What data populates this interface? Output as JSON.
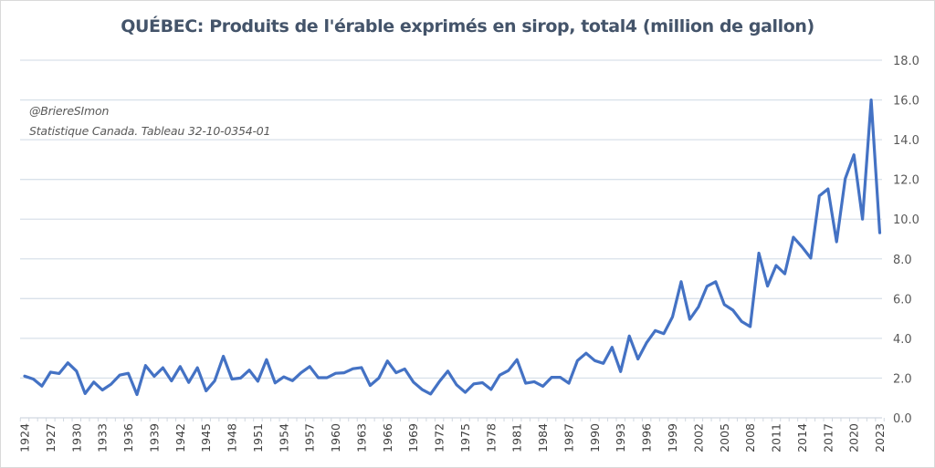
{
  "chart_data": {
    "type": "line",
    "title": "QUÉBEC: Produits de l'érable exprimés en sirop, total4 (million de gallon)",
    "annotations": [
      "@BriereSImon",
      "Statistique Canada. Tableau 32-10-0354-01"
    ],
    "xlabel": "",
    "ylabel": "",
    "ylim": [
      0,
      18
    ],
    "y_ticks": [
      "0.0",
      "2.0",
      "4.0",
      "6.0",
      "8.0",
      "10.0",
      "12.0",
      "14.0",
      "16.0",
      "18.0"
    ],
    "y_tick_values": [
      0,
      2,
      4,
      6,
      8,
      10,
      12,
      14,
      16,
      18
    ],
    "y_axis_position": "right",
    "grid": true,
    "legend": "none",
    "x_ticks": [
      "1924",
      "1927",
      "1930",
      "1933",
      "1936",
      "1939",
      "1942",
      "1945",
      "1948",
      "1951",
      "1954",
      "1957",
      "1960",
      "1963",
      "1966",
      "1969",
      "1972",
      "1975",
      "1978",
      "1981",
      "1984",
      "1987",
      "1990",
      "1993",
      "1996",
      "1999",
      "2002",
      "2005",
      "2008",
      "2011",
      "2014",
      "2017",
      "2020",
      "2023"
    ],
    "line_color": "#4472c4",
    "x": [
      1924,
      1925,
      1926,
      1927,
      1928,
      1929,
      1930,
      1931,
      1932,
      1933,
      1934,
      1935,
      1936,
      1937,
      1938,
      1939,
      1940,
      1941,
      1942,
      1943,
      1944,
      1945,
      1946,
      1947,
      1948,
      1949,
      1950,
      1951,
      1952,
      1953,
      1954,
      1955,
      1956,
      1957,
      1958,
      1959,
      1960,
      1961,
      1962,
      1963,
      1964,
      1965,
      1966,
      1967,
      1968,
      1969,
      1970,
      1971,
      1972,
      1973,
      1974,
      1975,
      1976,
      1977,
      1978,
      1979,
      1980,
      1981,
      1982,
      1983,
      1984,
      1985,
      1986,
      1987,
      1988,
      1989,
      1990,
      1991,
      1992,
      1993,
      1994,
      1995,
      1996,
      1997,
      1998,
      1999,
      2000,
      2001,
      2002,
      2003,
      2004,
      2005,
      2006,
      2007,
      2008,
      2009,
      2010,
      2011,
      2012,
      2013,
      2014,
      2015,
      2016,
      2017,
      2018,
      2019,
      2020,
      2021,
      2022,
      2023
    ],
    "series": [
      {
        "name": "Produits de l'érable exprimés en sirop, total",
        "values": [
          2.1,
          1.95,
          1.6,
          2.3,
          2.23,
          2.77,
          2.35,
          1.22,
          1.8,
          1.4,
          1.69,
          2.15,
          2.24,
          1.17,
          2.63,
          2.09,
          2.52,
          1.86,
          2.58,
          1.78,
          2.52,
          1.36,
          1.86,
          3.1,
          1.95,
          2.0,
          2.4,
          1.84,
          2.93,
          1.76,
          2.06,
          1.87,
          2.27,
          2.58,
          2.02,
          2.02,
          2.24,
          2.27,
          2.47,
          2.53,
          1.63,
          2.0,
          2.86,
          2.27,
          2.46,
          1.8,
          1.43,
          1.2,
          1.82,
          2.35,
          1.66,
          1.28,
          1.71,
          1.77,
          1.43,
          2.15,
          2.38,
          2.93,
          1.74,
          1.82,
          1.59,
          2.04,
          2.04,
          1.74,
          2.88,
          3.25,
          2.88,
          2.74,
          3.55,
          2.33,
          4.12,
          2.96,
          3.78,
          4.39,
          4.24,
          5.08,
          6.85,
          4.96,
          5.58,
          6.62,
          6.85,
          5.7,
          5.42,
          4.85,
          4.59,
          8.29,
          6.63,
          7.67,
          7.25,
          9.09,
          8.6,
          8.04,
          11.17,
          11.52,
          8.86,
          12.04,
          13.24,
          10.0,
          16.0,
          9.31
        ]
      }
    ]
  }
}
